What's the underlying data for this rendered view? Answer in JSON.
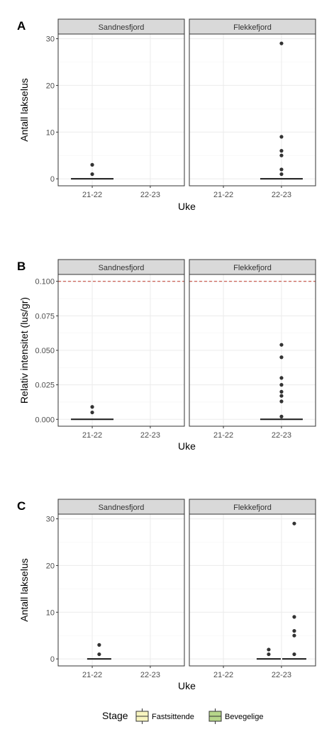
{
  "colors": {
    "strip_fill": "#d9d9d9",
    "grid_major": "#ebebeb",
    "grid_minor": "#f5f5f5",
    "frame": "#333333",
    "point": "#333333",
    "reference_line": "#c0392b",
    "legend_fastsittende": "#f7f4bf",
    "legend_bevegelige": "#b6d68a"
  },
  "legend": {
    "title": "Stage",
    "items": [
      {
        "label": "Fastsittende",
        "color": "#f7f4bf"
      },
      {
        "label": "Bevegelige",
        "color": "#b6d68a"
      }
    ]
  },
  "chart_data": [
    {
      "tag": "A",
      "type": "box",
      "xlabel": "Uke",
      "ylabel": "Antall lakselus",
      "categories": [
        "21-22",
        "22-23"
      ],
      "ylim": [
        -1.5,
        31
      ],
      "yticks": [
        0,
        10,
        20,
        30
      ],
      "ytick_labels": [
        "0",
        "10",
        "20",
        "30"
      ],
      "facets": [
        {
          "name": "Sandnesfjord",
          "boxes": [
            {
              "x": "21-22",
              "median": 0,
              "points": [
                1,
                3
              ]
            }
          ]
        },
        {
          "name": "Flekkefjord",
          "boxes": [
            {
              "x": "22-23",
              "median": 0,
              "points": [
                1,
                2,
                5,
                6,
                9,
                29
              ]
            }
          ]
        }
      ]
    },
    {
      "tag": "B",
      "type": "box",
      "xlabel": "Uke",
      "ylabel": "Relativ intensitet (lus/gr)",
      "categories": [
        "21-22",
        "22-23"
      ],
      "ylim": [
        -0.005,
        0.105
      ],
      "yticks": [
        0,
        0.025,
        0.05,
        0.075,
        0.1
      ],
      "ytick_labels": [
        "0.000",
        "0.025",
        "0.050",
        "0.075",
        "0.100"
      ],
      "reference_line": 0.1,
      "facets": [
        {
          "name": "Sandnesfjord",
          "boxes": [
            {
              "x": "21-22",
              "median": 0,
              "points": [
                0.005,
                0.009
              ]
            }
          ]
        },
        {
          "name": "Flekkefjord",
          "boxes": [
            {
              "x": "22-23",
              "median": 0,
              "points": [
                0.002,
                0.013,
                0.017,
                0.02,
                0.025,
                0.03,
                0.045,
                0.054
              ]
            }
          ]
        }
      ]
    },
    {
      "tag": "C",
      "type": "box",
      "xlabel": "Uke",
      "ylabel": "Antall lakselus",
      "categories": [
        "21-22",
        "22-23"
      ],
      "ylim": [
        -1.5,
        31
      ],
      "yticks": [
        0,
        10,
        20,
        30
      ],
      "ytick_labels": [
        "0",
        "10",
        "20",
        "30"
      ],
      "facets": [
        {
          "name": "Sandnesfjord",
          "boxes": [
            {
              "x": "21-22",
              "median": 0,
              "points": [
                1,
                3
              ],
              "offset": 0.12
            }
          ]
        },
        {
          "name": "Flekkefjord",
          "boxes": [
            {
              "x": "22-23",
              "median": 0,
              "points": [
                1,
                2
              ],
              "offset": -0.22
            },
            {
              "x": "22-23",
              "median": 0,
              "points": [
                1,
                5,
                6,
                9,
                29
              ],
              "offset": 0.22
            }
          ]
        }
      ]
    }
  ]
}
